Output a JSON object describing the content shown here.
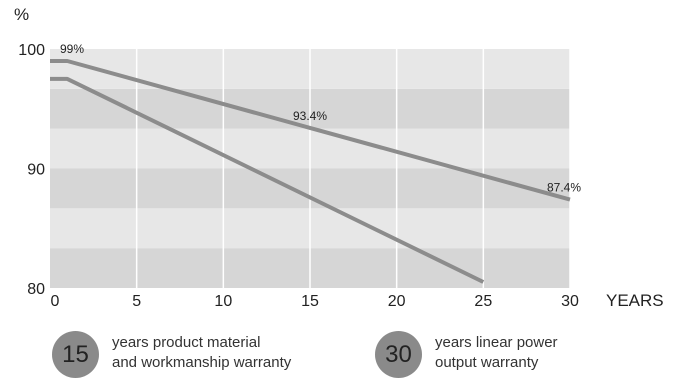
{
  "chart_data": {
    "type": "line",
    "ylabel": "%",
    "xlabel": "YEARS",
    "xlim": [
      0,
      30
    ],
    "ylim": [
      80,
      100
    ],
    "xticks": [
      0,
      5,
      10,
      15,
      20,
      25,
      30
    ],
    "yticks": [
      80,
      90,
      100
    ],
    "grid": true,
    "background": "alternating gray bands",
    "series": [
      {
        "points": [
          [
            0,
            99
          ],
          [
            1,
            99
          ],
          [
            15,
            93.4
          ],
          [
            30,
            87.4
          ]
        ],
        "color": "#8c8c8c"
      },
      {
        "points": [
          [
            0,
            97.5
          ],
          [
            1,
            97.5
          ],
          [
            25,
            80.5
          ]
        ],
        "color": "#8c8c8c"
      }
    ],
    "annotations": [
      {
        "text": "99%",
        "x": 0,
        "y": 99
      },
      {
        "text": "93.4%",
        "x": 15,
        "y": 93.4
      },
      {
        "text": "87.4%",
        "x": 30,
        "y": 87.4
      }
    ]
  },
  "warranties": [
    {
      "number": "15",
      "line1": "years product material",
      "line2": "and workmanship warranty"
    },
    {
      "number": "30",
      "line1": "years linear power",
      "line2": "output warranty"
    }
  ]
}
